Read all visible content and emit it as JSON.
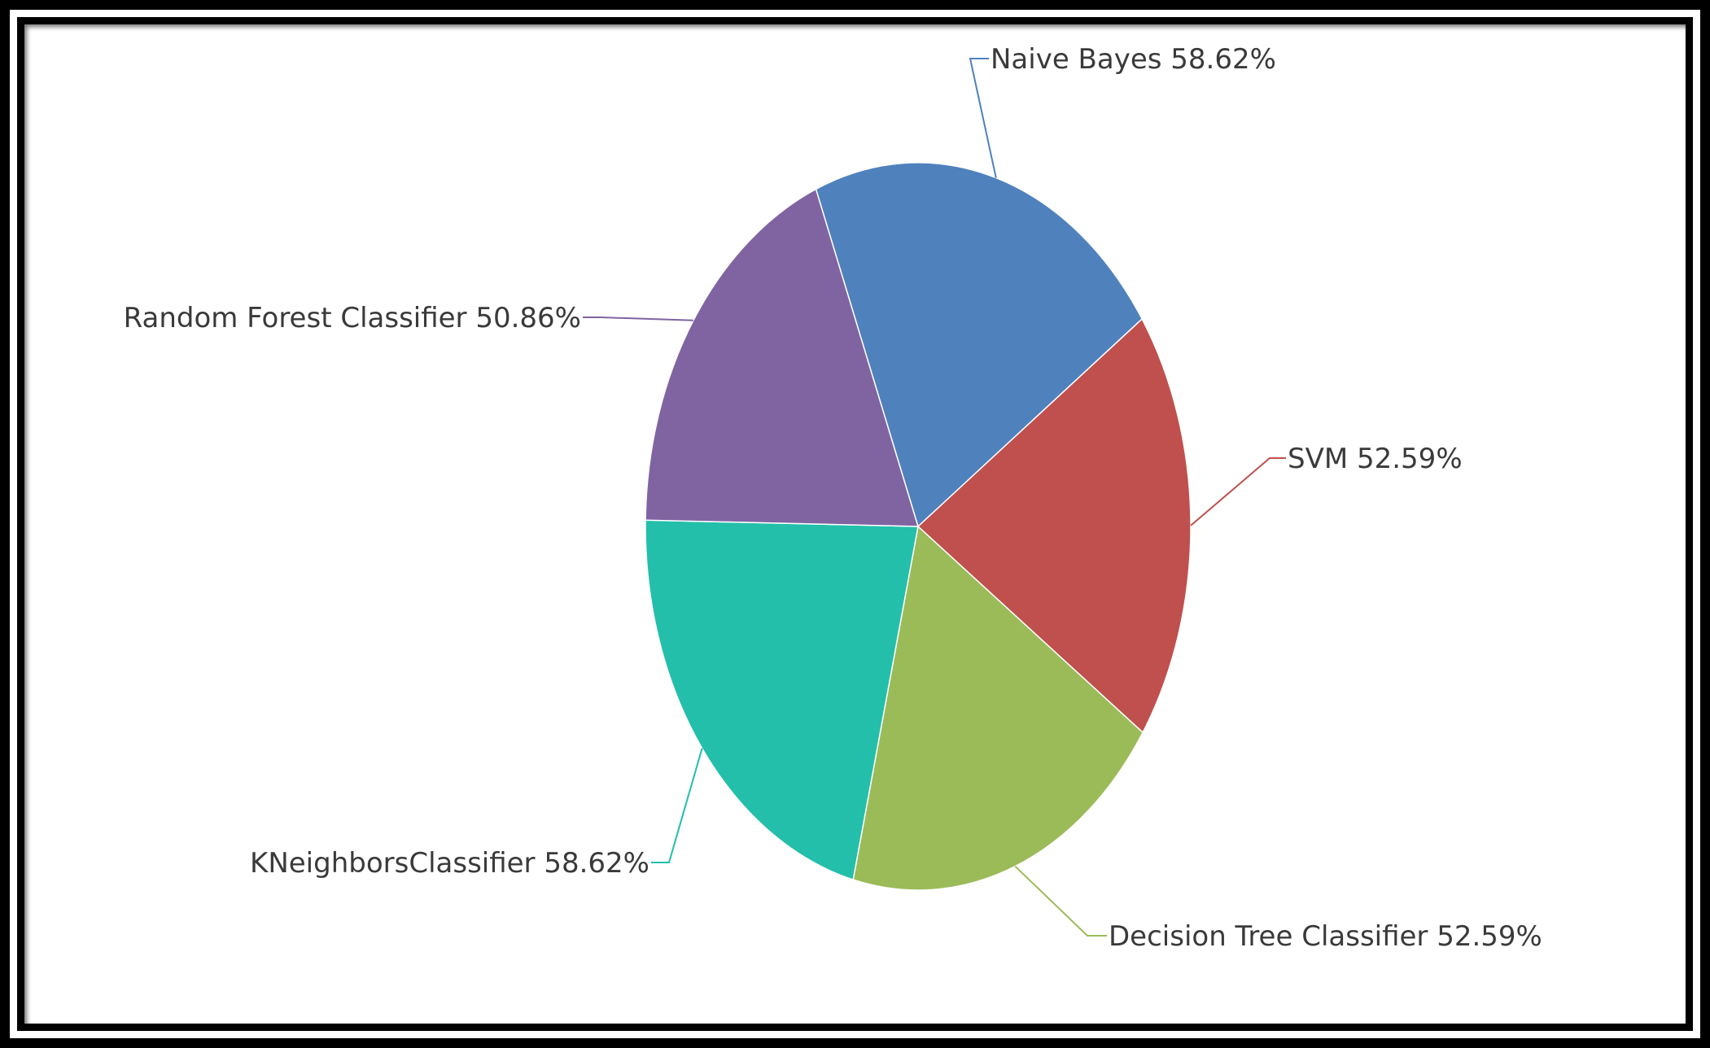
{
  "chart_data": {
    "type": "pie",
    "title": "",
    "categories": [
      "Naive Bayes",
      "SVM",
      "Decision Tree Classifier",
      "KNeighborsClassifier",
      "Random Forest Classifier"
    ],
    "values": [
      58.62,
      52.59,
      52.59,
      58.62,
      50.86
    ],
    "value_labels": [
      "58.62%",
      "52.59%",
      "52.59%",
      "58.62%",
      "50.86%"
    ],
    "labels": [
      "Naive Bayes 58.62%",
      "SVM 52.59%",
      "Decision Tree Classifier 52.59%",
      "KNeighborsClassifier 58.62%",
      "Random Forest Classifier 50.86%"
    ],
    "colors": [
      "#4f81bd",
      "#c0504d",
      "#9bbb59",
      "#23bfaa",
      "#8064a2"
    ],
    "legend": "none",
    "grid": false
  }
}
